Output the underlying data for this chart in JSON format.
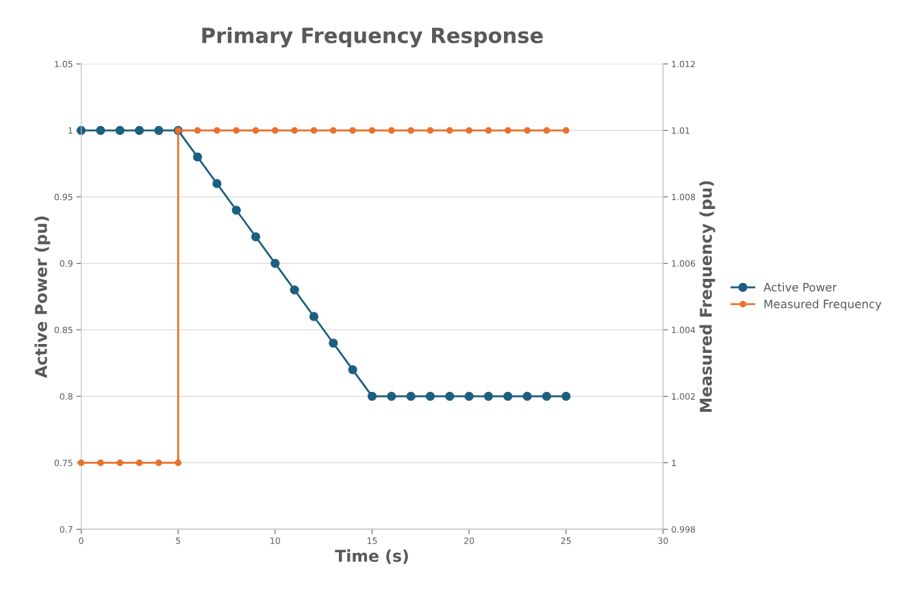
{
  "chart_data": {
    "type": "line",
    "title": "Primary Frequency Response",
    "xlabel": "Time (s)",
    "ylabel": "Active Power (pu)",
    "y2label": "Measured Frequency (pu)",
    "xlim": [
      0,
      30
    ],
    "xticks": [
      0,
      5,
      10,
      15,
      20,
      25,
      30
    ],
    "ylim": [
      0.7,
      1.05
    ],
    "yticks": [
      0.7,
      0.75,
      0.8,
      0.85,
      0.9,
      0.95,
      1,
      1.05
    ],
    "y2lim": [
      0.998,
      1.012
    ],
    "y2ticks": [
      0.998,
      1,
      1.002,
      1.004,
      1.006,
      1.008,
      1.01,
      1.012
    ],
    "grid": "y",
    "legend": "right",
    "marker": "circle",
    "line_style": "solid",
    "series": [
      {
        "name": "Active Power",
        "color": "#1d5f80",
        "x": [
          0,
          1,
          2,
          3,
          4,
          5,
          6,
          7,
          8,
          9,
          10,
          11,
          12,
          13,
          14,
          15,
          16,
          17,
          18,
          19,
          20,
          21,
          22,
          23,
          24,
          25
        ],
        "values": [
          1,
          1,
          1,
          1,
          1,
          1,
          0.98,
          0.96,
          0.94,
          0.92,
          0.9,
          0.88,
          0.86,
          0.84,
          0.82,
          0.8,
          0.8,
          0.8,
          0.8,
          0.8,
          0.8,
          0.8,
          0.8,
          0.8,
          0.8,
          0.8
        ]
      },
      {
        "name": "Measured Frequency",
        "color": "#e8712d",
        "axis": "y2",
        "x": [
          0,
          1,
          2,
          3,
          4,
          5,
          5,
          6,
          7,
          8,
          9,
          10,
          11,
          12,
          13,
          14,
          15,
          16,
          17,
          18,
          19,
          20,
          21,
          22,
          23,
          24,
          25
        ],
        "values": [
          1,
          1,
          1,
          1,
          1,
          1,
          1.01,
          1.01,
          1.01,
          1.01,
          1.01,
          1.01,
          1.01,
          1.01,
          1.01,
          1.01,
          1.01,
          1.01,
          1.01,
          1.01,
          1.01,
          1.01,
          1.01,
          1.01,
          1.01,
          1.01,
          1.01
        ]
      }
    ]
  }
}
